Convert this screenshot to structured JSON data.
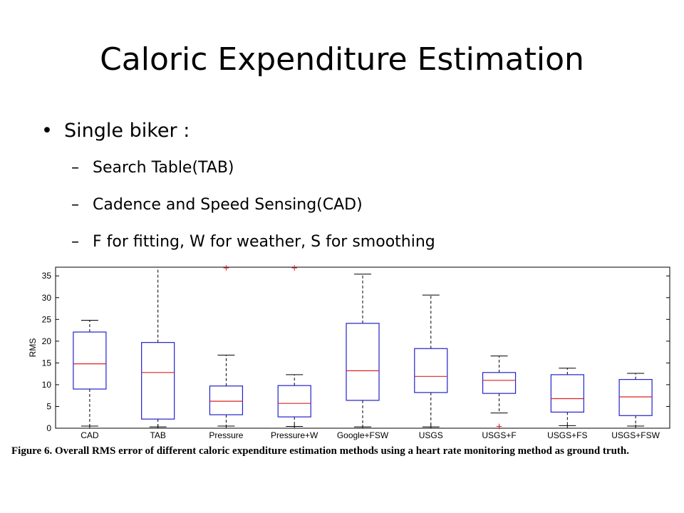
{
  "slide": {
    "title": "Caloric Expenditure Estimation",
    "bullet": "Single biker :",
    "sub_bullets": [
      "Search Table(TAB)",
      "Cadence and Speed Sensing(CAD)",
      "F for fitting, W for weather, S for smoothing"
    ]
  },
  "figure": {
    "caption": "Figure 6. Overall RMS error of different caloric expenditure estimation methods using a heart rate monitoring method as ground truth."
  },
  "chart_data": {
    "type": "box",
    "ylabel": "RMS",
    "ylim": [
      0,
      37
    ],
    "yticks": [
      0,
      5,
      10,
      15,
      20,
      25,
      30,
      35
    ],
    "grid": false,
    "box_color": "#2222cc",
    "median_color": "#dd2222",
    "whisker_color": "#000000",
    "categories": [
      "CAD",
      "TAB",
      "Pressure",
      "Pressure+W",
      "Google+FSW",
      "USGS",
      "USGS+F",
      "USGS+FS",
      "USGS+FSW"
    ],
    "boxes": [
      {
        "category": "CAD",
        "whisker_low": 0.5,
        "q1": 9.0,
        "median": 14.8,
        "q3": 22.1,
        "whisker_high": 24.8,
        "outliers": []
      },
      {
        "category": "TAB",
        "whisker_low": 0.3,
        "q1": 2.1,
        "median": 12.8,
        "q3": 19.7,
        "whisker_high": 37,
        "outliers": []
      },
      {
        "category": "Pressure",
        "whisker_low": 0.5,
        "q1": 3.1,
        "median": 6.2,
        "q3": 9.7,
        "whisker_high": 16.8,
        "outliers": [
          36.8
        ]
      },
      {
        "category": "Pressure+W",
        "whisker_low": 0.4,
        "q1": 2.6,
        "median": 5.7,
        "q3": 9.8,
        "whisker_high": 12.3,
        "outliers": [
          36.8
        ]
      },
      {
        "category": "Google+FSW",
        "whisker_low": 0.3,
        "q1": 6.4,
        "median": 13.2,
        "q3": 24.1,
        "whisker_high": 35.4,
        "outliers": []
      },
      {
        "category": "USGS",
        "whisker_low": 0.3,
        "q1": 8.2,
        "median": 11.9,
        "q3": 18.3,
        "whisker_high": 30.6,
        "outliers": []
      },
      {
        "category": "USGS+F",
        "whisker_low": 3.5,
        "q1": 8.0,
        "median": 11.0,
        "q3": 12.8,
        "whisker_high": 16.6,
        "outliers": [
          0.4
        ]
      },
      {
        "category": "USGS+FS",
        "whisker_low": 0.6,
        "q1": 3.7,
        "median": 6.8,
        "q3": 12.3,
        "whisker_high": 13.8,
        "outliers": []
      },
      {
        "category": "USGS+FSW",
        "whisker_low": 0.5,
        "q1": 2.9,
        "median": 7.2,
        "q3": 11.2,
        "whisker_high": 12.6,
        "outliers": []
      }
    ]
  }
}
